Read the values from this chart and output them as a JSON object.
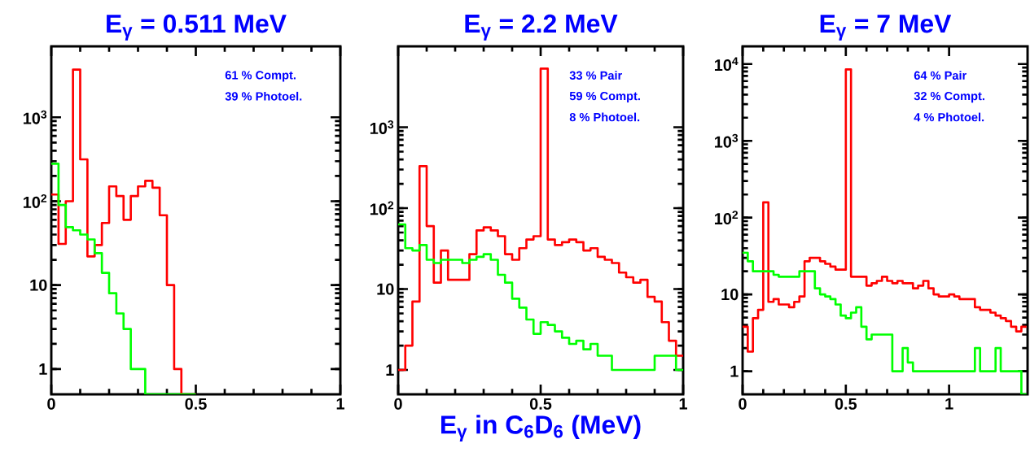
{
  "chart_data": [
    {
      "type": "histogram",
      "title": "E$_{γ}$ = 0.511 MeV",
      "log": true,
      "xlim": [
        0,
        1
      ],
      "xticks": [
        0,
        0.5,
        1
      ],
      "ylim": [
        0.5,
        7000
      ],
      "yticks": [
        1,
        10,
        {
          "value": 100,
          "label": "10$^{2}$"
        },
        {
          "value": 1000,
          "label": "10$^{3}$"
        }
      ],
      "annotations": [
        "61 % Compt.",
        "39 % Photoel."
      ],
      "bins": [
        0,
        0.025,
        0.05,
        0.075,
        0.1,
        0.125,
        0.15,
        0.175,
        0.2,
        0.225,
        0.25,
        0.275,
        0.3,
        0.325,
        0.35,
        0.375,
        0.4,
        0.425,
        0.45,
        0.475,
        0.5
      ],
      "series": [
        {
          "color": "#ff0000",
          "values": [
            120,
            31,
            100,
            3700,
            315,
            22,
            30,
            55,
            150,
            115,
            60,
            115,
            150,
            175,
            145,
            68,
            10,
            1,
            null,
            null
          ]
        },
        {
          "color": "#00ff00",
          "values": [
            280,
            90,
            49,
            45,
            40,
            35,
            24,
            14,
            8,
            4.6,
            3,
            1,
            1,
            null,
            null,
            null,
            null,
            null,
            null,
            null
          ]
        }
      ]
    },
    {
      "type": "histogram",
      "title": "E$_{γ}$ = 2.2 MeV",
      "xlabel": "E$_{γ}$ in C$_{6}$D$_{6}$ (MeV)",
      "log": true,
      "xlim": [
        0,
        1
      ],
      "xticks": [
        0,
        0.5,
        1
      ],
      "ylim": [
        0.5,
        10000
      ],
      "yticks": [
        1,
        10,
        {
          "value": 100,
          "label": "10$^{2}$"
        },
        {
          "value": 1000,
          "label": "10$^{3}$"
        }
      ],
      "annotations": [
        "33 % Pair",
        "59 % Compt.",
        "8 % Photoel."
      ],
      "bins": [
        0,
        0.025,
        0.05,
        0.075,
        0.1,
        0.125,
        0.15,
        0.175,
        0.2,
        0.225,
        0.25,
        0.275,
        0.3,
        0.325,
        0.35,
        0.375,
        0.4,
        0.425,
        0.45,
        0.475,
        0.5,
        0.525,
        0.55,
        0.575,
        0.6,
        0.625,
        0.65,
        0.675,
        0.7,
        0.725,
        0.75,
        0.775,
        0.8,
        0.825,
        0.85,
        0.875,
        0.9,
        0.925,
        0.95,
        0.975,
        1
      ],
      "series": [
        {
          "color": "#ff0000",
          "values": [
            1,
            2,
            7,
            330,
            60,
            12,
            30,
            13,
            13,
            13,
            27,
            53,
            58,
            53,
            45,
            27,
            23,
            32,
            41,
            45,
            5300,
            41,
            35,
            38,
            41,
            38,
            30,
            32,
            25,
            23,
            21,
            16,
            14,
            12,
            13,
            8,
            7,
            3.9,
            2.3,
            1.5
          ]
        },
        {
          "color": "#00ff00",
          "values": [
            63,
            32,
            30,
            35,
            23,
            21,
            23,
            23,
            23,
            21,
            23,
            25,
            27,
            23,
            15,
            12,
            7.6,
            5.9,
            4.2,
            2.8,
            3.9,
            3.6,
            3,
            2.5,
            2.1,
            2.3,
            1.8,
            2.1,
            1.5,
            1.5,
            1,
            1,
            1,
            1,
            1,
            1,
            1.5,
            1.5,
            1.5,
            1
          ]
        }
      ]
    },
    {
      "type": "histogram",
      "title": "E$_{γ}$ = 7 MeV",
      "log": true,
      "xlim": [
        0,
        1.38
      ],
      "xticks": [
        0,
        0.5,
        1
      ],
      "ylim": [
        0.5,
        17000
      ],
      "yticks": [
        1,
        10,
        {
          "value": 100,
          "label": "10$^{2}$"
        },
        {
          "value": 1000,
          "label": "10$^{3}$"
        },
        {
          "value": 10000,
          "label": "10$^{4}$"
        }
      ],
      "annotations": [
        "64 % Pair",
        "32 % Compt.",
        "4 % Photoel."
      ],
      "bins": [
        0,
        0.025,
        0.05,
        0.075,
        0.1,
        0.125,
        0.15,
        0.175,
        0.2,
        0.225,
        0.25,
        0.275,
        0.3,
        0.325,
        0.35,
        0.375,
        0.4,
        0.425,
        0.45,
        0.475,
        0.5,
        0.525,
        0.55,
        0.575,
        0.6,
        0.625,
        0.65,
        0.675,
        0.7,
        0.725,
        0.75,
        0.775,
        0.8,
        0.825,
        0.85,
        0.875,
        0.9,
        0.925,
        0.95,
        0.975,
        1,
        1.025,
        1.05,
        1.075,
        1.1,
        1.125,
        1.15,
        1.175,
        1.2,
        1.225,
        1.25,
        1.275,
        1.3,
        1.325,
        1.35,
        1.375
      ],
      "series": [
        {
          "color": "#ff0000",
          "values": [
            3.8,
            1.8,
            4.9,
            6.3,
            158,
            8,
            8.7,
            7.4,
            7.4,
            6.8,
            8,
            9.4,
            27,
            30,
            30,
            27,
            25,
            23,
            21,
            21,
            8500,
            17,
            17,
            17,
            13,
            14,
            15,
            17,
            15,
            14,
            15,
            14,
            14,
            12,
            13,
            15,
            12,
            10,
            9.4,
            9.4,
            10,
            9.4,
            8.7,
            8.7,
            8.7,
            6.8,
            6.3,
            6.3,
            5.8,
            5.3,
            4.9,
            4.5,
            3.8,
            3.3,
            3.8
          ]
        },
        {
          "color": "#00ff00",
          "values": [
            35,
            27,
            20,
            20,
            20,
            20,
            18,
            17,
            17,
            17,
            17,
            20,
            20,
            20,
            12,
            10,
            9.4,
            8.7,
            7.4,
            5.3,
            4.9,
            5.8,
            6.8,
            3.8,
            2.6,
            3,
            3,
            3,
            3,
            1,
            1,
            2,
            1.3,
            1,
            1,
            1,
            1,
            1,
            1,
            1,
            1,
            1,
            1,
            1,
            1,
            2,
            1,
            1,
            1,
            2,
            1,
            1,
            1,
            1,
            null
          ]
        }
      ]
    }
  ]
}
